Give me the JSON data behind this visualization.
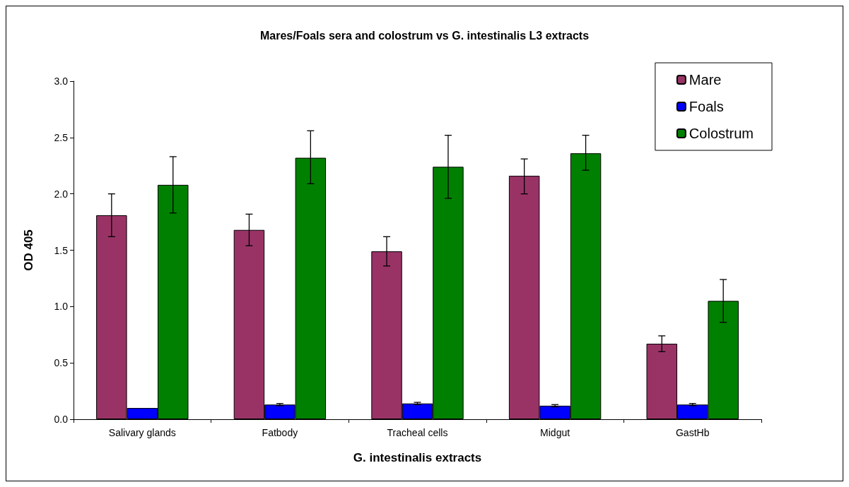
{
  "chart_data": {
    "type": "bar",
    "title": "Mares/Foals sera and colostrum vs G. intestinalis L3 extracts",
    "xlabel": "G. intestinalis extracts",
    "ylabel": "OD 405",
    "categories": [
      "Salivary glands",
      "Fatbody",
      "Tracheal cells",
      "Midgut",
      "GastHb"
    ],
    "series": [
      {
        "name": "Mare",
        "color": "#993366",
        "values": [
          1.81,
          1.68,
          1.49,
          2.16,
          0.67
        ],
        "errors": [
          [
            1.62,
            2.0
          ],
          [
            1.54,
            1.82
          ],
          [
            1.36,
            1.62
          ],
          [
            2.0,
            2.31
          ],
          [
            0.6,
            0.74
          ]
        ]
      },
      {
        "name": "Foals",
        "color": "#0000ff",
        "values": [
          0.1,
          0.13,
          0.14,
          0.12,
          0.13
        ],
        "errors": [
          null,
          [
            0.12,
            0.14
          ],
          [
            0.13,
            0.15
          ],
          [
            0.11,
            0.13
          ],
          [
            0.12,
            0.14
          ]
        ]
      },
      {
        "name": "Colostrum",
        "color": "#008000",
        "values": [
          2.08,
          2.32,
          2.24,
          2.36,
          1.05
        ],
        "errors": [
          [
            1.83,
            2.33
          ],
          [
            2.09,
            2.56
          ],
          [
            1.96,
            2.52
          ],
          [
            2.21,
            2.52
          ],
          [
            0.86,
            1.24
          ]
        ]
      }
    ],
    "ylim": [
      0,
      3
    ],
    "yticks": [
      {
        "value": 0,
        "label": "0.0"
      },
      0.5,
      {
        "value": 1,
        "label": "1.0"
      },
      1.5,
      {
        "value": 2,
        "label": "2.0"
      },
      2.5,
      {
        "value": 3,
        "label": "3.0"
      }
    ],
    "grid": false,
    "legend": "top right"
  }
}
